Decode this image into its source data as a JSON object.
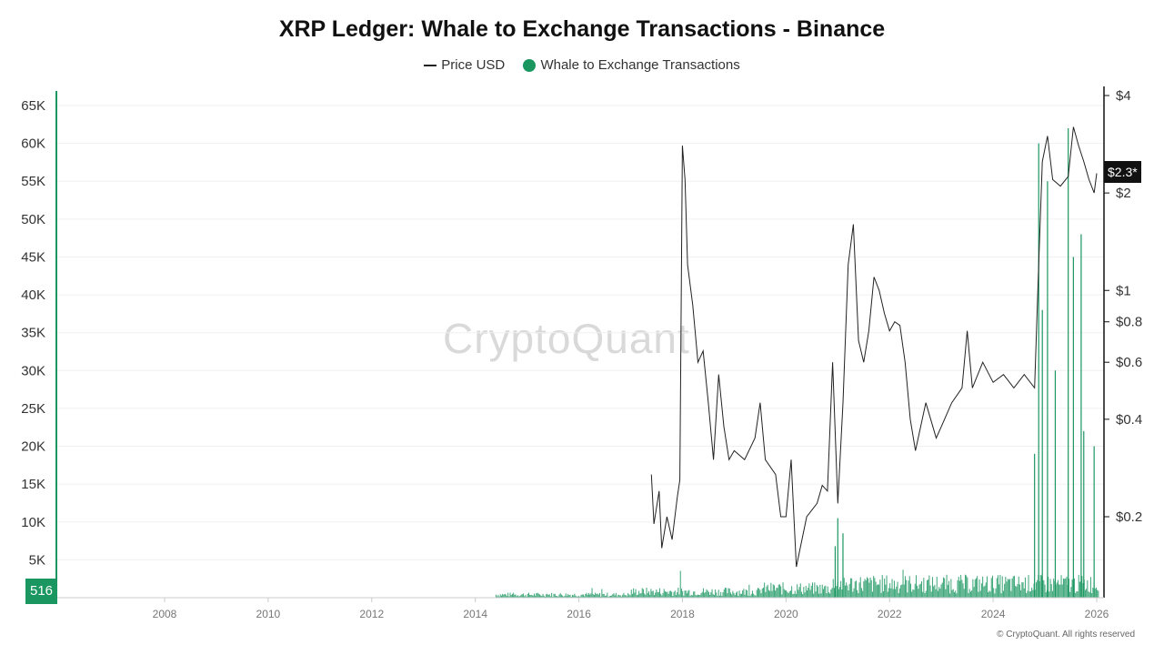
{
  "chart_data": {
    "type": "bar+line",
    "title": "XRP Ledger: Whale to Exchange Transactions - Binance",
    "legend": [
      {
        "label": "Price USD",
        "marker": "line",
        "color": "#222222"
      },
      {
        "label": "Whale to Exchange Transactions",
        "marker": "dot",
        "color": "#1a9660"
      }
    ],
    "x_range": [
      2006,
      2026
    ],
    "x_ticks": [
      "2008",
      "2010",
      "2012",
      "2014",
      "2016",
      "2018",
      "2020",
      "2022",
      "2024",
      "2026"
    ],
    "y_left": {
      "ticks": [
        "65K",
        "60K",
        "55K",
        "50K",
        "45K",
        "40K",
        "35K",
        "30K",
        "25K",
        "20K",
        "15K",
        "10K",
        "5K"
      ],
      "tick_values": [
        65000,
        60000,
        55000,
        50000,
        45000,
        40000,
        35000,
        30000,
        25000,
        20000,
        15000,
        10000,
        5000
      ],
      "range": [
        0,
        65000
      ],
      "min_label": "516"
    },
    "y_right": {
      "scale": "log",
      "ticks": [
        "$4",
        "$2",
        "$1",
        "$0.8",
        "$0.6",
        "$0.4",
        "$0.2"
      ],
      "tick_values": [
        4,
        2,
        1,
        0.8,
        0.6,
        0.4,
        0.2
      ],
      "current_label": "$2.3*",
      "current_value": 2.3
    },
    "series_price": {
      "name": "Price USD",
      "points": [
        [
          2017.4,
          0.27
        ],
        [
          2017.45,
          0.19
        ],
        [
          2017.55,
          0.24
        ],
        [
          2017.6,
          0.16
        ],
        [
          2017.7,
          0.2
        ],
        [
          2017.8,
          0.17
        ],
        [
          2017.9,
          0.23
        ],
        [
          2017.95,
          0.26
        ],
        [
          2018.0,
          2.8
        ],
        [
          2018.05,
          2.2
        ],
        [
          2018.1,
          1.2
        ],
        [
          2018.2,
          0.9
        ],
        [
          2018.3,
          0.6
        ],
        [
          2018.4,
          0.65
        ],
        [
          2018.5,
          0.45
        ],
        [
          2018.6,
          0.3
        ],
        [
          2018.7,
          0.55
        ],
        [
          2018.8,
          0.38
        ],
        [
          2018.9,
          0.3
        ],
        [
          2019.0,
          0.32
        ],
        [
          2019.2,
          0.3
        ],
        [
          2019.4,
          0.35
        ],
        [
          2019.5,
          0.45
        ],
        [
          2019.6,
          0.3
        ],
        [
          2019.8,
          0.27
        ],
        [
          2019.9,
          0.2
        ],
        [
          2020.0,
          0.2
        ],
        [
          2020.1,
          0.3
        ],
        [
          2020.2,
          0.14
        ],
        [
          2020.4,
          0.2
        ],
        [
          2020.6,
          0.22
        ],
        [
          2020.7,
          0.25
        ],
        [
          2020.8,
          0.24
        ],
        [
          2020.9,
          0.6
        ],
        [
          2021.0,
          0.22
        ],
        [
          2021.1,
          0.45
        ],
        [
          2021.2,
          1.2
        ],
        [
          2021.3,
          1.6
        ],
        [
          2021.4,
          0.7
        ],
        [
          2021.5,
          0.6
        ],
        [
          2021.6,
          0.75
        ],
        [
          2021.7,
          1.1
        ],
        [
          2021.8,
          1.0
        ],
        [
          2021.9,
          0.85
        ],
        [
          2022.0,
          0.75
        ],
        [
          2022.1,
          0.8
        ],
        [
          2022.2,
          0.78
        ],
        [
          2022.3,
          0.6
        ],
        [
          2022.4,
          0.4
        ],
        [
          2022.5,
          0.32
        ],
        [
          2022.7,
          0.45
        ],
        [
          2022.9,
          0.35
        ],
        [
          2023.0,
          0.38
        ],
        [
          2023.2,
          0.45
        ],
        [
          2023.4,
          0.5
        ],
        [
          2023.5,
          0.75
        ],
        [
          2023.6,
          0.5
        ],
        [
          2023.8,
          0.6
        ],
        [
          2024.0,
          0.52
        ],
        [
          2024.2,
          0.55
        ],
        [
          2024.4,
          0.5
        ],
        [
          2024.6,
          0.55
        ],
        [
          2024.8,
          0.5
        ],
        [
          2024.88,
          1.2
        ],
        [
          2024.95,
          2.5
        ],
        [
          2025.05,
          3.0
        ],
        [
          2025.15,
          2.2
        ],
        [
          2025.3,
          2.1
        ],
        [
          2025.45,
          2.25
        ],
        [
          2025.55,
          3.2
        ],
        [
          2025.65,
          2.8
        ],
        [
          2025.75,
          2.5
        ],
        [
          2025.85,
          2.2
        ],
        [
          2025.95,
          2.0
        ],
        [
          2026.0,
          2.3
        ]
      ]
    },
    "series_whale": {
      "name": "Whale to Exchange Transactions",
      "baseline_start": 2014.4,
      "notable_spikes": [
        [
          2020.95,
          6800
        ],
        [
          2021.0,
          10500
        ],
        [
          2021.1,
          8500
        ],
        [
          2024.8,
          19000
        ],
        [
          2024.88,
          60000
        ],
        [
          2024.95,
          38000
        ],
        [
          2025.05,
          55000
        ],
        [
          2025.2,
          30000
        ],
        [
          2025.45,
          62000
        ],
        [
          2025.55,
          45000
        ],
        [
          2025.7,
          48000
        ],
        [
          2025.75,
          22000
        ],
        [
          2025.95,
          20000
        ]
      ]
    }
  },
  "watermark": "CryptoQuant",
  "copyright": "© CryptoQuant. All rights reserved"
}
